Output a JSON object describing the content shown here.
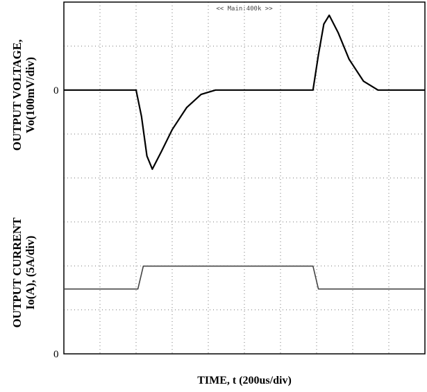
{
  "chart_data": {
    "type": "line",
    "header": "<< Main:400k >>",
    "xlabel": "TIME, t (200us/div)",
    "ylabel_voltage_line1": "OUTPUT VOLTAGE,",
    "ylabel_voltage_line2": "Vo(100mV/div)",
    "ylabel_current_line1": "OUTPUT CURRENT",
    "ylabel_current_line2": "Io(A), (5A/div)",
    "voltage_zero_label": "0",
    "current_zero_label": "0",
    "x_divisions": 10,
    "y_divisions": 8,
    "grid": "dotted",
    "series": [
      {
        "x": [
          0,
          2.0,
          2.15,
          2.3,
          2.45,
          2.7,
          3.0,
          3.4,
          3.8,
          4.2,
          4.6,
          6.9,
          7.05,
          7.2,
          7.35,
          7.6,
          7.9,
          8.3,
          8.7,
          10
        ],
        "values": [
          0,
          0,
          -0.06,
          -0.15,
          -0.18,
          -0.14,
          -0.09,
          -0.04,
          -0.01,
          0,
          0,
          0,
          0.08,
          0.15,
          0.17,
          0.13,
          0.07,
          0.02,
          0,
          0
        ]
      },
      {
        "x": [
          0,
          2.05,
          2.2,
          6.9,
          7.05,
          10
        ],
        "values": [
          0,
          0,
          1,
          1,
          0,
          0
        ]
      }
    ]
  }
}
